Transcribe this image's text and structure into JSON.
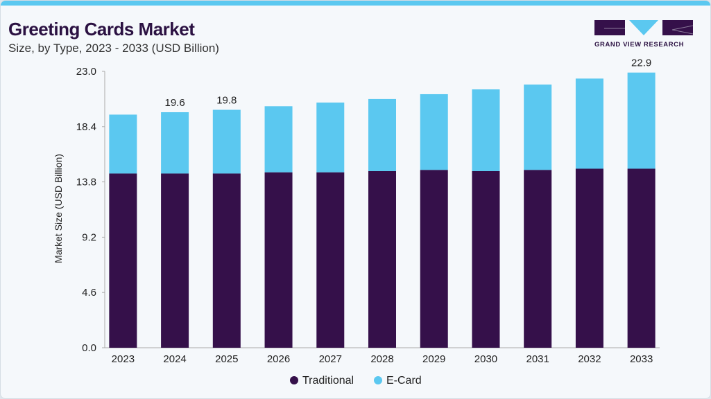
{
  "header": {
    "title": "Greeting Cards Market",
    "subtitle": "Size, by Type, 2023 - 2033 (USD Billion)",
    "logo_text": "GRAND VIEW RESEARCH"
  },
  "colors": {
    "traditional": "#35104a",
    "ecard": "#5bc8f0",
    "accent": "#5bc8f0"
  },
  "chart_data": {
    "type": "bar",
    "stacked": true,
    "title": "Greeting Cards Market",
    "subtitle": "Size, by Type, 2023 - 2033 (USD Billion)",
    "xlabel": "",
    "ylabel": "Market Size (USD Billion)",
    "ylim": [
      0,
      23.0
    ],
    "yticks": [
      "0.0",
      "4.6",
      "9.2",
      "13.8",
      "18.4",
      "23.0"
    ],
    "grid": false,
    "legend_position": "bottom",
    "categories": [
      "2023",
      "2024",
      "2025",
      "2026",
      "2027",
      "2028",
      "2029",
      "2030",
      "2031",
      "2032",
      "2033"
    ],
    "series": [
      {
        "name": "Traditional",
        "values": [
          14.5,
          14.5,
          14.5,
          14.6,
          14.6,
          14.7,
          14.8,
          14.7,
          14.8,
          14.9,
          14.9
        ]
      },
      {
        "name": "E-Card",
        "values": [
          4.9,
          5.1,
          5.3,
          5.5,
          5.8,
          6.0,
          6.3,
          6.8,
          7.1,
          7.5,
          8.0
        ]
      }
    ],
    "data_labels": [
      {
        "category": "2024",
        "text": "19.6"
      },
      {
        "category": "2025",
        "text": "19.8"
      },
      {
        "category": "2033",
        "text": "22.9"
      }
    ]
  }
}
